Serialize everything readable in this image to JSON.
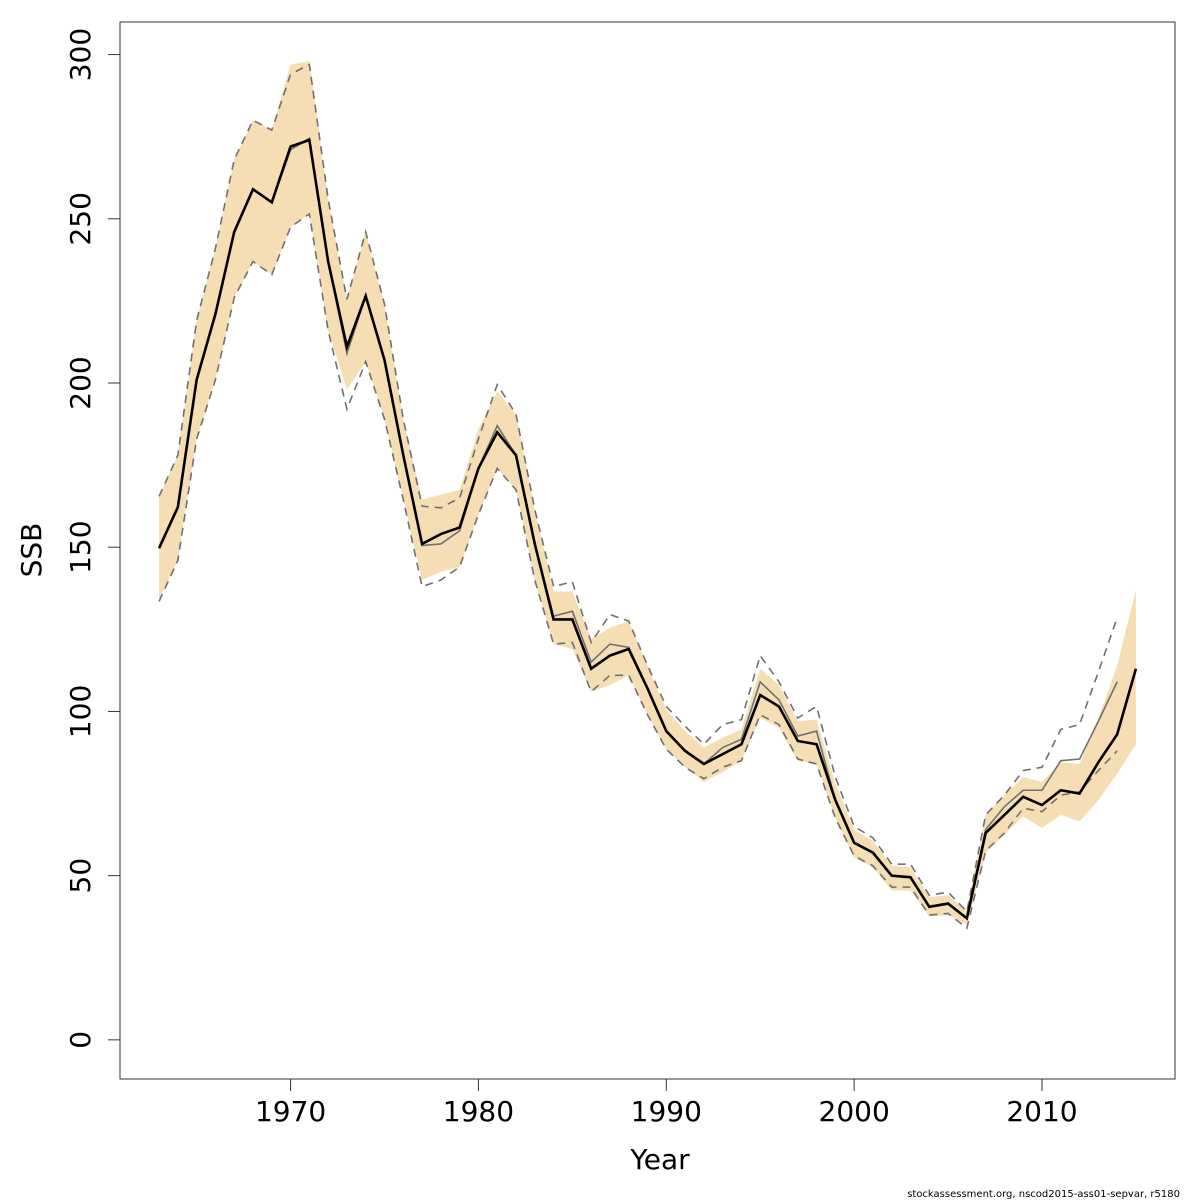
{
  "chart_data": {
    "type": "line",
    "xlabel": "Year",
    "ylabel": "SSB",
    "footer": "stockassessment.org, nscod2015-ass01-sepvar, r5180",
    "x": [
      1963,
      1964,
      1965,
      1966,
      1967,
      1968,
      1969,
      1970,
      1971,
      1972,
      1973,
      1974,
      1975,
      1976,
      1977,
      1978,
      1979,
      1980,
      1981,
      1982,
      1983,
      1984,
      1985,
      1986,
      1987,
      1988,
      1989,
      1990,
      1991,
      1992,
      1993,
      1994,
      1995,
      1996,
      1997,
      1998,
      1999,
      2000,
      2001,
      2002,
      2003,
      2004,
      2005,
      2006,
      2007,
      2008,
      2009,
      2010,
      2011,
      2012,
      2013,
      2014,
      2015
    ],
    "series": [
      {
        "color": "#000000",
        "band_color": "#f5deb3",
        "dashed": false,
        "values": [
          149.7,
          162.2,
          201,
          221,
          246,
          259,
          255,
          272,
          274,
          237,
          211,
          226.5,
          207,
          178,
          151,
          154,
          156,
          174,
          185,
          178,
          151,
          128,
          128,
          113,
          117,
          119,
          107,
          94,
          88,
          84,
          87,
          90,
          105,
          101.5,
          91,
          90,
          73,
          60,
          57,
          50,
          49.5,
          40.5,
          41.5,
          37,
          63,
          68.5,
          74,
          71.5,
          76,
          75,
          84.5,
          93,
          113
        ],
        "upper": [
          165.5,
          178,
          219,
          241,
          268,
          280,
          277,
          297,
          298,
          256,
          225.5,
          246,
          224,
          189,
          164.5,
          166,
          167.5,
          186,
          197.5,
          190.5,
          161.5,
          136.5,
          136.5,
          122,
          125.5,
          127.5,
          114,
          100.5,
          94,
          89,
          92,
          94.5,
          113,
          108,
          97,
          97.5,
          78,
          64,
          60.5,
          53,
          52.5,
          43.5,
          44,
          39.5,
          68.5,
          74.5,
          80,
          78.5,
          84.5,
          84,
          98,
          114,
          137
        ],
        "lower": [
          134,
          146,
          183,
          201,
          226,
          237,
          233,
          247.5,
          251.5,
          216,
          198,
          206.5,
          189,
          164.5,
          140,
          142.5,
          144,
          160,
          174,
          167.5,
          140,
          120.5,
          119,
          106,
          108,
          111,
          99,
          88.5,
          83,
          78.5,
          81.5,
          85,
          98,
          95,
          85,
          84,
          67.5,
          55.5,
          52.5,
          45.5,
          45.5,
          37.5,
          38,
          35,
          57,
          62.5,
          68,
          64.5,
          68.5,
          66.5,
          73,
          81,
          90
        ]
      },
      {
        "color": "#707070",
        "band_color": null,
        "dashed": true,
        "values": [
          149.7,
          162.2,
          201,
          221,
          246,
          259,
          255,
          271,
          274.5,
          237,
          209,
          226.5,
          207,
          178,
          150.5,
          151,
          155,
          174,
          187,
          178,
          151,
          129,
          130.5,
          115,
          120.5,
          119.5,
          107,
          94,
          88,
          84,
          89,
          91.5,
          109,
          103.5,
          92.5,
          94,
          73,
          60,
          57,
          50,
          49.5,
          40.5,
          41.5,
          37,
          64,
          71,
          76,
          76,
          85,
          85.5,
          97,
          109,
          null
        ],
        "upper": [
          165.5,
          178,
          219,
          241,
          268,
          280,
          277,
          294,
          297,
          256,
          225.5,
          246,
          224,
          189,
          162.5,
          162,
          165,
          183,
          199.5,
          190.5,
          161.5,
          138,
          139.5,
          121,
          129.5,
          127.5,
          114,
          101.5,
          95.5,
          90,
          96,
          97.5,
          117,
          109,
          98,
          101.5,
          80,
          65,
          61.5,
          53.5,
          53.5,
          44,
          45,
          39,
          68.5,
          74.5,
          82,
          83,
          94.5,
          96,
          112,
          128.5,
          null
        ],
        "lower": [
          133.5,
          146,
          183,
          201,
          226,
          237,
          233,
          247.5,
          251.5,
          216,
          192,
          206.5,
          189,
          164.5,
          138,
          140,
          144,
          160,
          174,
          167.5,
          140,
          120.5,
          121,
          106,
          111,
          111,
          99,
          88.5,
          83,
          79.5,
          83,
          85,
          99,
          96,
          85.5,
          84,
          67.5,
          56,
          53,
          46.5,
          46.5,
          38,
          38.5,
          34,
          57.5,
          63,
          70.5,
          69.5,
          74.5,
          75.5,
          82,
          88,
          null
        ]
      }
    ],
    "xlim": [
      1960.92,
      2017.08
    ],
    "xticks": [
      1970,
      1980,
      1990,
      2000,
      2010
    ],
    "ylim": [
      -11.92,
      309.92
    ],
    "yticks": [
      0,
      50,
      100,
      150,
      200,
      250,
      300
    ],
    "grid": false
  }
}
